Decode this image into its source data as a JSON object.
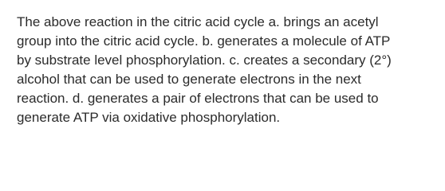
{
  "question": {
    "lines": [
      "The above reaction in the citric acid cycle a. brings an acetyl",
      "group into the citric acid cycle. b. generates a molecule of ATP",
      "by substrate level phosphorylation. c. creates a secondary (2°)",
      "alcohol that can be used to generate electrons in the next",
      "reaction. d. generates a pair of electrons that can be used to",
      "generate ATP via oxidative phosphorylation."
    ]
  }
}
